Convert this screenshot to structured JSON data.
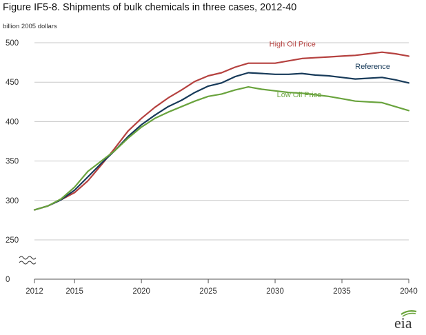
{
  "title": "Figure IF5-8. Shipments of bulk chemicals in three cases, 2012-40",
  "units_label": "billion 2005 dollars",
  "logo_text": "eia",
  "colors": {
    "high": "#b5413f",
    "reference": "#173a59",
    "low": "#69a33d",
    "gridline": "#c8c8c8",
    "axis": "#555555",
    "logo_arc": "#6aa43a",
    "logo_text": "#3a3a3a"
  },
  "chart_data": {
    "type": "line",
    "title": "Figure IF5-8. Shipments of bulk chemicals in three cases, 2012-40",
    "ylabel": "billion 2005 dollars",
    "xlabel": "",
    "xlim": [
      2012,
      2040
    ],
    "ylim": [
      0,
      500
    ],
    "axis_break": true,
    "y_ticks": [
      0,
      250,
      300,
      350,
      400,
      450,
      500
    ],
    "x_ticks": [
      2012,
      2015,
      2020,
      2025,
      2030,
      2035,
      2040
    ],
    "grid": "horizontal",
    "legend": "inline labels",
    "x": [
      2012,
      2013,
      2014,
      2015,
      2016,
      2017,
      2018,
      2019,
      2020,
      2021,
      2022,
      2023,
      2024,
      2025,
      2026,
      2027,
      2028,
      2029,
      2030,
      2031,
      2032,
      2033,
      2034,
      2035,
      2036,
      2037,
      2038,
      2039,
      2040
    ],
    "series": [
      {
        "name": "High Oil Price",
        "color_key": "high",
        "values": [
          288,
          293,
          301,
          310,
          325,
          345,
          366,
          388,
          404,
          418,
          430,
          440,
          451,
          458,
          462,
          469,
          474,
          474,
          474,
          477,
          480,
          481,
          482,
          483,
          484,
          486,
          488,
          486,
          483
        ]
      },
      {
        "name": "Reference",
        "color_key": "reference",
        "values": [
          288,
          293,
          301,
          313,
          330,
          347,
          363,
          381,
          396,
          408,
          419,
          427,
          437,
          445,
          449,
          457,
          462,
          461,
          460,
          460,
          461,
          459,
          458,
          456,
          454,
          455,
          456,
          453,
          449
        ]
      },
      {
        "name": "Low Oil Price",
        "color_key": "low",
        "values": [
          288,
          293,
          302,
          317,
          337,
          350,
          363,
          379,
          393,
          404,
          412,
          419,
          426,
          432,
          435,
          440,
          444,
          441,
          439,
          437,
          436,
          434,
          432,
          429,
          426,
          425,
          424,
          419,
          414
        ]
      }
    ]
  }
}
